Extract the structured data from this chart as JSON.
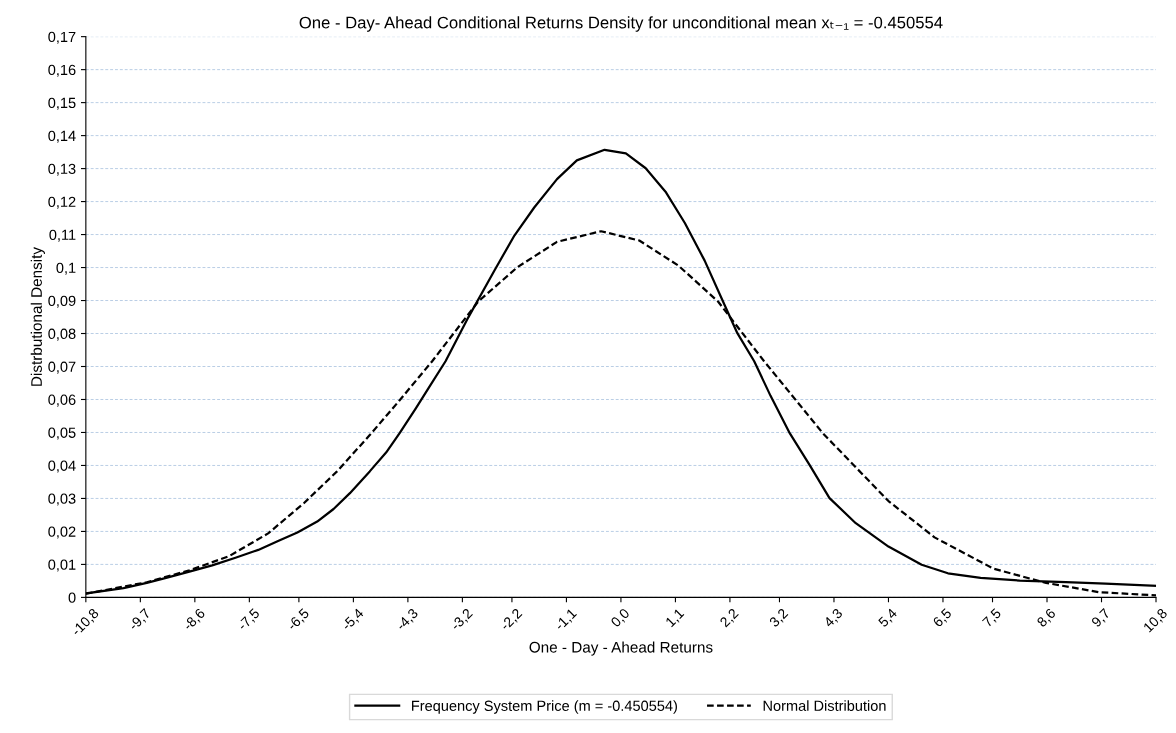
{
  "chart_data": {
    "type": "line",
    "title": "One - Day- Ahead Conditional Returns Density for unconditional mean xₜ₋₁ = -0.450554",
    "xlabel": "One - Day - Ahead Returns",
    "ylabel": "Distrbutional Density",
    "xlim": [
      -10.8,
      10.8
    ],
    "xticks": [
      {
        "value": -10.8,
        "label": "-10,8"
      },
      {
        "value": -9.7,
        "label": "-9,7"
      },
      {
        "value": -8.6,
        "label": "-8,6"
      },
      {
        "value": -7.5,
        "label": "-7,5"
      },
      {
        "value": -6.5,
        "label": "-6,5"
      },
      {
        "value": -5.4,
        "label": "-5,4"
      },
      {
        "value": -4.3,
        "label": "-4,3"
      },
      {
        "value": -3.2,
        "label": "-3,2"
      },
      {
        "value": -2.2,
        "label": "-2,2"
      },
      {
        "value": -1.1,
        "label": "-1,1"
      },
      {
        "value": 0,
        "label": "0,0"
      },
      {
        "value": 1.1,
        "label": "1,1"
      },
      {
        "value": 2.2,
        "label": "2,2"
      },
      {
        "value": 3.2,
        "label": "3,2"
      },
      {
        "value": 4.3,
        "label": "4,3"
      },
      {
        "value": 5.4,
        "label": "5,4"
      },
      {
        "value": 6.5,
        "label": "6,5"
      },
      {
        "value": 7.5,
        "label": "7,5"
      },
      {
        "value": 8.6,
        "label": "8,6"
      },
      {
        "value": 9.7,
        "label": "9,7"
      },
      {
        "value": 10.8,
        "label": "10,8"
      }
    ],
    "ylim": [
      0,
      0.17
    ],
    "yticks": [
      0,
      {
        "value": 0.01,
        "label": "0,01"
      },
      {
        "value": 0.02,
        "label": "0,02"
      },
      {
        "value": 0.03,
        "label": "0,03"
      },
      {
        "value": 0.04,
        "label": "0,04"
      },
      {
        "value": 0.05,
        "label": "0,05"
      },
      {
        "value": 0.06,
        "label": "0,06"
      },
      {
        "value": 0.07,
        "label": "0,07"
      },
      {
        "value": 0.08,
        "label": "0,08"
      },
      {
        "value": 0.09,
        "label": "0,09"
      },
      {
        "value": 0.1,
        "label": "0,1"
      },
      {
        "value": 0.11,
        "label": "0,11"
      },
      {
        "value": 0.12,
        "label": "0,12"
      },
      {
        "value": 0.13,
        "label": "0,13"
      },
      {
        "value": 0.14,
        "label": "0,14"
      },
      {
        "value": 0.15,
        "label": "0,15"
      },
      {
        "value": 0.16,
        "label": "0,16"
      },
      {
        "value": 0.17,
        "label": "0,17"
      }
    ],
    "grid": "y",
    "legend": "bottom",
    "marker": "none",
    "series": [
      {
        "name": "Frequency System Price (m = -0.450554)",
        "color": "#000000",
        "line_style": "solid",
        "x": [
          -10.8,
          -10.04,
          -9.57,
          -9.18,
          -8.71,
          -8.25,
          -7.78,
          -7.32,
          -6.92,
          -6.53,
          -6.13,
          -5.8,
          -5.47,
          -5.07,
          -4.74,
          -4.47,
          -4.14,
          -3.88,
          -3.54,
          -3.08,
          -2.55,
          -2.15,
          -1.75,
          -1.29,
          -0.89,
          -0.33,
          0.1,
          0.5,
          0.9,
          1.29,
          1.69,
          2.09,
          2.35,
          2.69,
          3.02,
          3.41,
          3.81,
          4.21,
          4.74,
          5.4,
          6.07,
          6.6,
          7.26,
          8.05,
          8.98,
          9.78,
          10.8
        ],
        "values": [
          0.0012,
          0.0028,
          0.0044,
          0.0059,
          0.0078,
          0.0097,
          0.012,
          0.0144,
          0.0171,
          0.0197,
          0.023,
          0.0268,
          0.0316,
          0.0382,
          0.0439,
          0.0497,
          0.0573,
          0.0635,
          0.0716,
          0.0849,
          0.0992,
          0.1097,
          0.1182,
          0.1268,
          0.1325,
          0.1357,
          0.1346,
          0.1301,
          0.123,
          0.1135,
          0.1021,
          0.0887,
          0.0801,
          0.0716,
          0.0611,
          0.0497,
          0.0401,
          0.0301,
          0.0225,
          0.0154,
          0.0099,
          0.0073,
          0.0059,
          0.0051,
          0.0046,
          0.0042,
          0.0035
        ]
      },
      {
        "name": "Normal Distribution",
        "color": "#000000",
        "line_style": "dashed",
        "x": [
          -10.8,
          -9.57,
          -8.71,
          -7.91,
          -7.12,
          -6.39,
          -5.73,
          -5.07,
          -4.47,
          -3.81,
          -2.88,
          -2.09,
          -1.29,
          -0.4,
          0.37,
          1.16,
          1.96,
          2.89,
          4.08,
          5.4,
          6.33,
          7.52,
          8.58,
          9.64,
          10.8
        ],
        "values": [
          0.0011,
          0.0046,
          0.0082,
          0.0125,
          0.0194,
          0.0287,
          0.0382,
          0.0492,
          0.0597,
          0.0716,
          0.0897,
          0.1001,
          0.1078,
          0.111,
          0.1082,
          0.1006,
          0.0897,
          0.0716,
          0.0497,
          0.0292,
          0.0182,
          0.0087,
          0.0044,
          0.0016,
          0.0006
        ]
      }
    ]
  }
}
